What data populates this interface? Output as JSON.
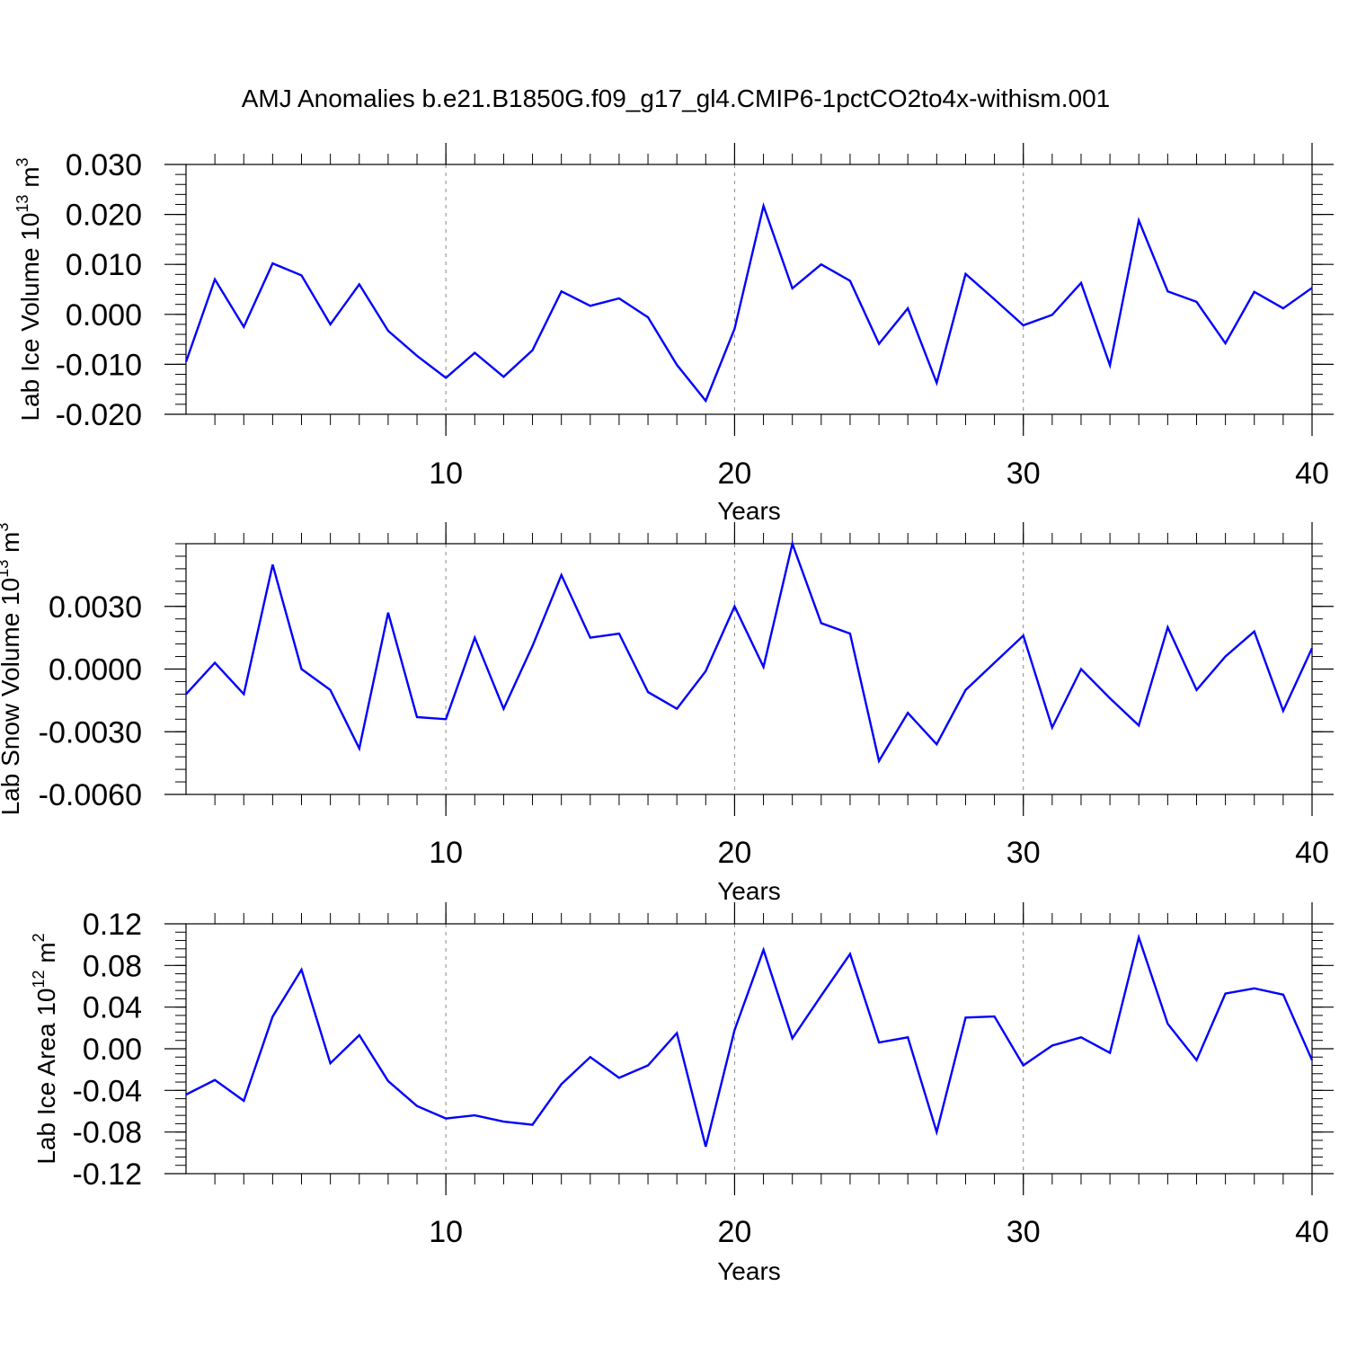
{
  "title": "AMJ Anomalies b.e21.B1850G.f09_g17_gl4.CMIP6-1pctCO2to4x-withism.001",
  "colors": {
    "line": "#0000ff",
    "axis": "#000000",
    "grid": "#888888"
  },
  "chart_data": [
    {
      "type": "line",
      "ylabel": "Lab Ice Volume 10",
      "ylabel_exp": "13",
      "ylabel_unit": " m",
      "ylabel_unit_exp": "3",
      "xlabel": "Years",
      "xlim": [
        1,
        40
      ],
      "ylim": [
        -0.02,
        0.03
      ],
      "yticks": [
        -0.02,
        -0.01,
        0.0,
        0.01,
        0.02,
        0.03
      ],
      "ytick_labels": [
        "-0.020",
        "-0.010",
        "0.000",
        "0.010",
        "0.020",
        "0.030"
      ],
      "xticks": [
        10,
        20,
        30,
        40
      ],
      "xtick_labels": [
        "10",
        "20",
        "30",
        "40"
      ],
      "grid_x": [
        10,
        20,
        30
      ],
      "series": [
        {
          "name": "Lab Ice Volume",
          "x": [
            1,
            2,
            3,
            4,
            5,
            6,
            7,
            8,
            9,
            10,
            11,
            12,
            13,
            14,
            15,
            16,
            17,
            18,
            19,
            20,
            21,
            22,
            23,
            24,
            25,
            26,
            27,
            28,
            29,
            30,
            31,
            32,
            33,
            34,
            35,
            36,
            37,
            38,
            39,
            40
          ],
          "values": [
            -0.0095,
            0.007,
            -0.0025,
            0.0102,
            0.0078,
            -0.002,
            0.006,
            -0.0033,
            -0.0083,
            -0.0127,
            -0.0077,
            -0.0125,
            -0.0072,
            0.0046,
            0.0017,
            0.0032,
            -0.0006,
            -0.0101,
            -0.0173,
            -0.0029,
            0.0217,
            0.0052,
            0.01,
            0.0067,
            -0.0059,
            0.0012,
            -0.0137,
            0.0081,
            0.003,
            -0.0022,
            -0.0001,
            0.0063,
            -0.0102,
            0.0188,
            0.0046,
            0.0025,
            -0.0058,
            0.0045,
            0.0012,
            0.0053
          ]
        }
      ]
    },
    {
      "type": "line",
      "ylabel": "Lab Snow Volume 10",
      "ylabel_exp": "13",
      "ylabel_unit": " m",
      "ylabel_unit_exp": "3",
      "xlabel": "Years",
      "xlim": [
        1,
        40
      ],
      "ylim": [
        -0.006,
        0.006
      ],
      "yticks": [
        -0.006,
        -0.003,
        0.0,
        0.003
      ],
      "ytick_labels": [
        "-0.0060",
        "-0.0030",
        "0.0000",
        "0.0030"
      ],
      "xticks": [
        10,
        20,
        30,
        40
      ],
      "xtick_labels": [
        "10",
        "20",
        "30",
        "40"
      ],
      "grid_x": [
        10,
        20,
        30
      ],
      "series": [
        {
          "name": "Lab Snow Volume",
          "x": [
            1,
            2,
            3,
            4,
            5,
            6,
            7,
            8,
            9,
            10,
            11,
            12,
            13,
            14,
            15,
            16,
            17,
            18,
            19,
            20,
            21,
            22,
            23,
            24,
            25,
            26,
            27,
            28,
            29,
            30,
            31,
            32,
            33,
            34,
            35,
            36,
            37,
            38,
            39,
            40
          ],
          "values": [
            -0.0012,
            0.0003,
            -0.0012,
            0.005,
            0.0,
            -0.001,
            -0.0038,
            0.0027,
            -0.0023,
            -0.0024,
            0.0015,
            -0.0019,
            0.0011,
            0.0045,
            0.0015,
            0.0017,
            -0.0011,
            -0.0019,
            -0.0001,
            0.003,
            0.0001,
            0.006,
            0.0022,
            0.0017,
            -0.0044,
            -0.0021,
            -0.0036,
            -0.001,
            0.0003,
            0.0016,
            -0.0028,
            0.0,
            -0.0014,
            -0.0027,
            0.002,
            -0.001,
            0.0006,
            0.0018,
            -0.002,
            0.001
          ]
        }
      ]
    },
    {
      "type": "line",
      "ylabel": "Lab Ice Area 10",
      "ylabel_exp": "12",
      "ylabel_unit": " m",
      "ylabel_unit_exp": "2",
      "xlabel": "Years",
      "xlim": [
        1,
        40
      ],
      "ylim": [
        -0.12,
        0.12
      ],
      "yticks": [
        -0.12,
        -0.08,
        -0.04,
        0.0,
        0.04,
        0.08,
        0.12
      ],
      "ytick_labels": [
        "-0.12",
        "-0.08",
        "-0.04",
        "0.00",
        "0.04",
        "0.08",
        "0.12"
      ],
      "xticks": [
        10,
        20,
        30,
        40
      ],
      "xtick_labels": [
        "10",
        "20",
        "30",
        "40"
      ],
      "grid_x": [
        10,
        20,
        30
      ],
      "series": [
        {
          "name": "Lab Ice Area",
          "x": [
            1,
            2,
            3,
            4,
            5,
            6,
            7,
            8,
            9,
            10,
            11,
            12,
            13,
            14,
            15,
            16,
            17,
            18,
            19,
            20,
            21,
            22,
            23,
            24,
            25,
            26,
            27,
            28,
            29,
            30,
            31,
            32,
            33,
            34,
            35,
            36,
            37,
            38,
            39,
            40
          ],
          "values": [
            -0.044,
            -0.03,
            -0.05,
            0.031,
            0.076,
            -0.014,
            0.013,
            -0.031,
            -0.055,
            -0.067,
            -0.064,
            -0.07,
            -0.073,
            -0.034,
            -0.008,
            -0.028,
            -0.016,
            0.015,
            -0.094,
            0.018,
            0.095,
            0.01,
            0.051,
            0.091,
            0.006,
            0.011,
            -0.08,
            0.03,
            0.031,
            -0.016,
            0.003,
            0.011,
            -0.004,
            0.107,
            0.024,
            -0.011,
            0.053,
            0.058,
            0.052,
            -0.011
          ]
        }
      ]
    }
  ]
}
